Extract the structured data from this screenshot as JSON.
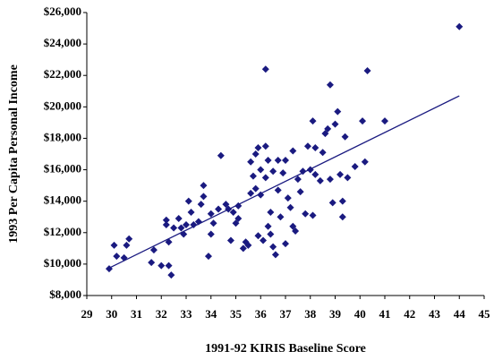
{
  "chart_data": {
    "type": "scatter",
    "x_label": "1991-92 KIRIS Baseline Score",
    "y_label": "1993 Per Capita Personal Income",
    "xlim": [
      29,
      45
    ],
    "xticks": [
      29,
      30,
      31,
      32,
      33,
      34,
      35,
      36,
      37,
      38,
      39,
      40,
      41,
      42,
      43,
      44,
      45
    ],
    "ylim": [
      8000,
      26000
    ],
    "yticks": [
      {
        "value": 8000,
        "label": "$8,000"
      },
      {
        "value": 10000,
        "label": "$10,000"
      },
      {
        "value": 12000,
        "label": "$12,000"
      },
      {
        "value": 14000,
        "label": "$14,000"
      },
      {
        "value": 16000,
        "label": "$16,000"
      },
      {
        "value": 18000,
        "label": "$18,000"
      },
      {
        "value": 20000,
        "label": "$20,000"
      },
      {
        "value": 22000,
        "label": "$22,000"
      },
      {
        "value": 24000,
        "label": "$24,000"
      },
      {
        "value": 26000,
        "label": "$26,000"
      }
    ],
    "series": [
      {
        "color": "#1a1a80",
        "x": [
          29.9,
          30.1,
          30.2,
          30.5,
          30.6,
          30.7,
          31.6,
          31.7,
          32.0,
          32.2,
          32.2,
          32.3,
          32.4,
          32.3,
          32.5,
          32.7,
          32.8,
          32.9,
          33.0,
          33.1,
          33.2,
          33.3,
          33.5,
          33.6,
          33.7,
          33.7,
          33.9,
          34.0,
          34.0,
          34.1,
          34.3,
          34.4,
          34.6,
          34.7,
          34.8,
          34.9,
          35.0,
          35.1,
          35.1,
          35.3,
          35.4,
          35.5,
          35.6,
          35.6,
          35.7,
          35.8,
          35.8,
          35.9,
          35.9,
          36.0,
          36.0,
          36.1,
          36.2,
          36.2,
          36.2,
          36.3,
          36.3,
          36.4,
          36.4,
          36.5,
          36.5,
          36.6,
          36.7,
          36.7,
          36.8,
          36.9,
          37.0,
          37.0,
          37.1,
          37.2,
          37.3,
          37.3,
          37.4,
          37.5,
          37.6,
          37.7,
          37.8,
          37.9,
          38.0,
          38.1,
          38.1,
          38.2,
          38.2,
          38.4,
          38.5,
          38.6,
          38.7,
          38.8,
          38.8,
          38.9,
          39.0,
          39.1,
          39.2,
          39.3,
          39.3,
          39.4,
          39.5,
          39.8,
          40.1,
          40.2,
          40.3,
          41.0,
          44.0
        ],
        "y": [
          9700,
          11200,
          10500,
          10400,
          11200,
          11600,
          10100,
          10900,
          9900,
          12500,
          12800,
          9900,
          9300,
          11400,
          12300,
          12900,
          12300,
          11900,
          12500,
          14000,
          13300,
          12500,
          12700,
          13800,
          14300,
          15000,
          10500,
          11900,
          13200,
          12600,
          13500,
          16900,
          13800,
          13500,
          11500,
          13300,
          12600,
          12900,
          13700,
          11000,
          11400,
          11200,
          16500,
          14500,
          15600,
          17000,
          14800,
          17400,
          11800,
          16000,
          14400,
          11500,
          17500,
          22400,
          15500,
          12400,
          16600,
          13300,
          11900,
          15900,
          11100,
          10600,
          14700,
          16600,
          13000,
          15800,
          16600,
          11300,
          14200,
          13600,
          17200,
          12400,
          12100,
          15400,
          14600,
          15900,
          13200,
          17500,
          16000,
          13100,
          19100,
          17400,
          15700,
          15300,
          17100,
          18300,
          18600,
          15400,
          21400,
          13900,
          18900,
          19700,
          15700,
          13000,
          14000,
          18100,
          15500,
          16200,
          19100,
          16500,
          22300,
          19100,
          25100
        ]
      }
    ],
    "trendline": {
      "color": "#1a1a80",
      "x": [
        29.9,
        44.0
      ],
      "y": [
        9750,
        20700
      ]
    }
  }
}
